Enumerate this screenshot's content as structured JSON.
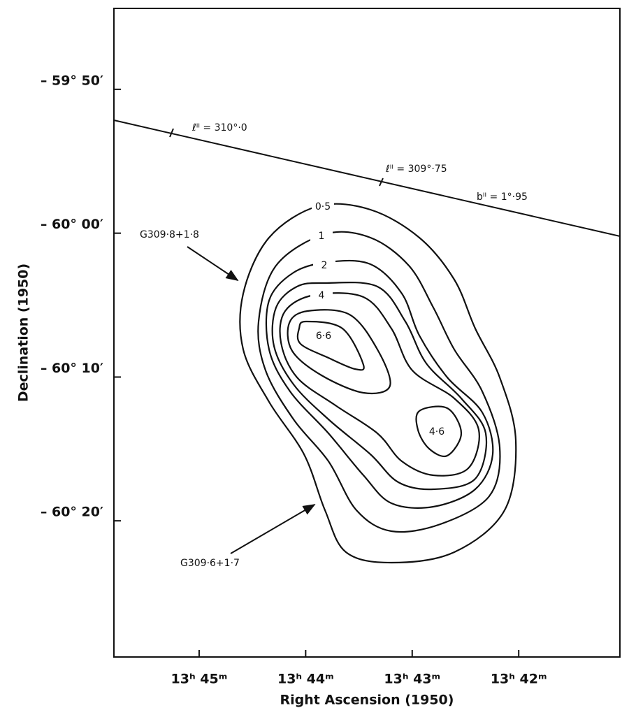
{
  "chart_data": {
    "type": "contour",
    "x_label": "Right   Ascension (1950)",
    "y_label": "Declination (1950)",
    "xlim": [
      45.8,
      41.05
    ],
    "ylim": [
      -60.4911,
      -59.7395
    ],
    "xticks": [
      {
        "value": 45,
        "label": "13ʰ 45ᵐ"
      },
      {
        "value": 44,
        "label": "13ʰ 44ᵐ"
      },
      {
        "value": 43,
        "label": "13ʰ 43ᵐ"
      },
      {
        "value": 42,
        "label": "13ʰ 42ᵐ"
      }
    ],
    "yticks": [
      {
        "value": -59.8333,
        "label": "– 59° 50′"
      },
      {
        "value": -60,
        "label": "– 60° 00′"
      },
      {
        "value": -60.1667,
        "label": "– 60° 10′"
      },
      {
        "value": -60.3333,
        "label": "– 60° 20′"
      }
    ],
    "values": [
      0.5,
      1,
      2,
      4,
      6.6,
      4.6
    ],
    "value_labels": [
      "0·5",
      "1",
      "2",
      "4",
      "6·6",
      "4·6"
    ],
    "annotations": [
      "ℓᴵᴵ = 310°·0",
      "ℓᴵᴵ = 309°·75",
      "bᴵᴵ = 1°·95",
      "G309·8+1·8",
      "G309·6+1·7"
    ]
  }
}
